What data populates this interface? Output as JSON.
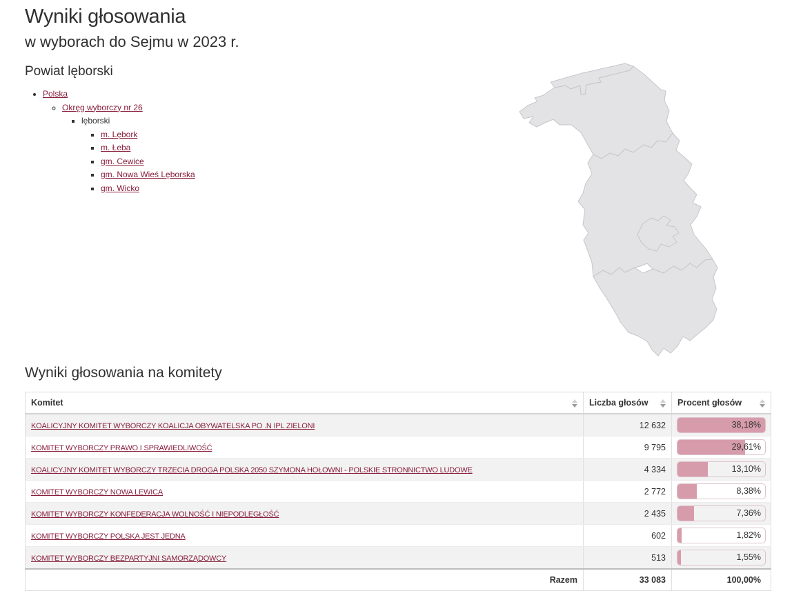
{
  "colors": {
    "link_color": "#881e3c",
    "bar_fill": "#d79cab",
    "bar_border": "#ddc3cb",
    "row_alt": "#f2f2f2",
    "map_fill": "#e3e3e5",
    "map_stroke": "#c6c6ca"
  },
  "page": {
    "title": "Wyniki głosowania",
    "subtitle": "w wyborach do Sejmu w 2023 r.",
    "region_title": "Powiat lęborski"
  },
  "breadcrumb": {
    "items": [
      {
        "label": "Polska",
        "link": true
      },
      {
        "label": "Okręg wyborczy nr 26",
        "link": true
      },
      {
        "label": "lęborski",
        "link": false
      },
      {
        "label": "m. Lębork",
        "link": true
      },
      {
        "label": "m. Łeba",
        "link": true
      },
      {
        "label": "gm. Cewice",
        "link": true
      },
      {
        "label": "gm. Nowa Wieś Lęborska",
        "link": true
      },
      {
        "label": "gm. Wicko",
        "link": true
      }
    ]
  },
  "results_section": {
    "heading": "Wyniki głosowania na komitety",
    "table": {
      "columns": {
        "committee": "Komitet",
        "votes": "Liczba głosów",
        "percent": "Procent głosów"
      },
      "rows": [
        {
          "committee": "KOALICYJNY KOMITET WYBORCZY KOALICJA OBYWATELSKA PO .N IPL ZIELONI",
          "votes": "12 632",
          "percent": "38,18%",
          "percent_value": 38.18
        },
        {
          "committee": "KOMITET WYBORCZY PRAWO I SPRAWIEDLIWOŚĆ",
          "votes": "9 795",
          "percent": "29,61%",
          "percent_value": 29.61
        },
        {
          "committee": "KOALICYJNY KOMITET WYBORCZY TRZECIA DROGA POLSKA 2050 SZYMONA HOŁOWNI - POLSKIE STRONNICTWO LUDOWE",
          "votes": "4 334",
          "percent": "13,10%",
          "percent_value": 13.1
        },
        {
          "committee": "KOMITET WYBORCZY NOWA LEWICA",
          "votes": "2 772",
          "percent": "8,38%",
          "percent_value": 8.38
        },
        {
          "committee": "KOMITET WYBORCZY KONFEDERACJA WOLNOŚĆ I NIEPODLEGŁOŚĆ",
          "votes": "2 435",
          "percent": "7,36%",
          "percent_value": 7.36
        },
        {
          "committee": "KOMITET WYBORCZY POLSKA JEST JEDNA",
          "votes": "602",
          "percent": "1,82%",
          "percent_value": 1.82
        },
        {
          "committee": "KOMITET WYBORCZY BEZPARTYJNI SAMORZĄDOWCY",
          "votes": "513",
          "percent": "1,55%",
          "percent_value": 1.55
        }
      ],
      "footer": {
        "label": "Razem",
        "votes": "33 083",
        "percent": "100,00%"
      }
    }
  }
}
